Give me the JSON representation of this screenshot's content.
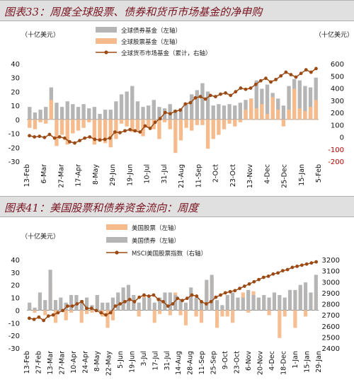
{
  "colors": {
    "bond": "#b5b5b5",
    "equity": "#f6bb8d",
    "line": "#9c4a14",
    "title_text": "#7a1522",
    "title_bg": "#e0e0e0"
  },
  "chart_data": [
    {
      "type": "bar",
      "title": "图表33：周度全球股票、债券和货币市场基金的净申购",
      "unit_left": "（十亿美元）",
      "unit_right": "（十亿美元）",
      "legend": [
        "全球债券基金（左轴）",
        "全球股票基金（左轴）",
        "全球货币市场基金（累计，右轴）"
      ],
      "legend_position": "top-center",
      "y_left": {
        "min": -30,
        "max": 40,
        "ticks": [
          "40",
          "30",
          "20",
          "10",
          "0",
          "-10",
          "-20",
          "-30"
        ]
      },
      "y_right": {
        "min": -200,
        "max": 600,
        "ticks": [
          "600",
          "500",
          "400",
          "300",
          "200",
          "100",
          "0",
          "-100",
          "-200"
        ]
      },
      "x_tick_labels": [
        "13-Feb",
        "6-Mar",
        "27-Mar",
        "17-Apr",
        "8-May",
        "29-Jun",
        "19-Jun",
        "10-Jul",
        "31-Jul",
        "21-Aug",
        "11-Sep",
        "2-Oct",
        "23-Oct",
        "13-Nov",
        "4-Dec",
        "25-Dec",
        "15-Jan",
        "5-Feb"
      ],
      "series": [
        {
          "name": "全球债券基金（左轴）",
          "kind": "bar",
          "values": [
            9,
            5,
            7,
            9,
            23,
            12,
            9,
            13,
            11,
            9,
            11,
            8,
            9,
            4,
            7,
            7,
            13,
            18,
            20,
            24,
            13,
            9,
            10,
            14,
            9,
            8,
            11,
            7,
            8,
            11,
            18,
            21,
            26,
            20,
            10,
            11,
            10,
            11,
            10,
            12,
            14,
            15,
            28,
            22,
            25,
            19,
            15,
            10,
            24,
            29,
            28,
            24,
            23,
            30
          ]
        },
        {
          "name": "全球股票基金（左轴）",
          "kind": "bar",
          "values": [
            -6,
            -7,
            -2,
            -3,
            14,
            -19,
            -11,
            -18,
            -10,
            -8,
            -6,
            -2,
            -18,
            -16,
            -17,
            -20,
            -14,
            -3,
            -5,
            -9,
            -8,
            -12,
            -6,
            -7,
            -14,
            -2,
            -7,
            -24,
            -15,
            -6,
            -8,
            -4,
            -4,
            -21,
            -14,
            -11,
            -7,
            -3,
            -5,
            -2,
            7,
            15,
            8,
            11,
            4,
            16,
            7,
            -5,
            7,
            22,
            8,
            6,
            9,
            14
          ]
        },
        {
          "name": "全球货币市场基金（累计，右轴）",
          "kind": "line",
          "values": [
            10,
            0,
            5,
            -5,
            20,
            -10,
            0,
            -10,
            -40,
            -50,
            -30,
            -10,
            0,
            -20,
            -25,
            -20,
            -10,
            40,
            35,
            50,
            60,
            50,
            40,
            90,
            70,
            120,
            150,
            200,
            190,
            210,
            220,
            270,
            280,
            320,
            330,
            310,
            340,
            330,
            350,
            360,
            340,
            370,
            400,
            390,
            400,
            430,
            460,
            480,
            450,
            470,
            500,
            530,
            510,
            490,
            520,
            550,
            530,
            560
          ]
        }
      ]
    },
    {
      "type": "bar",
      "title": "图表41：美国股票和债券资金流向：周度",
      "unit_left": "（十亿美元）",
      "legend": [
        "美国股票（左轴）",
        "美国债券（左轴）",
        "MSCI美国股票指数（右轴）"
      ],
      "legend_position": "top-center",
      "y_left": {
        "min": -30,
        "max": 40,
        "ticks": [
          "40",
          "30",
          "20",
          "10",
          "0",
          "-10",
          "-20",
          "-30"
        ]
      },
      "y_right": {
        "min": 2400,
        "max": 3200,
        "ticks": [
          "3200",
          "3100",
          "3000",
          "2900",
          "2800",
          "2700",
          "2600",
          "2500",
          "2400"
        ]
      },
      "x_tick_labels": [
        "13-Feb",
        "27-Feb",
        "13-Mar",
        "27-Mar",
        "10-Apr",
        "24-Apr",
        "8-May",
        "22-May",
        "5-Jun",
        "19-Jun",
        "3-Jul",
        "17-Jul",
        "31-Jul",
        "14-Aug",
        "28-Aug",
        "11-Sep",
        "25-Sep",
        "9-Oct",
        "23-Oct",
        "6-Nov",
        "20-Nov",
        "4-Dec",
        "18-Dec",
        "1-Jan",
        "15-Jan",
        "29-Jan"
      ],
      "series": [
        {
          "name": "美国股票（左轴）",
          "kind": "bar",
          "values": [
            3,
            -2,
            10,
            -4,
            24,
            -10,
            5,
            -8,
            -2,
            4,
            -10,
            -3,
            -2,
            12,
            -5,
            -14,
            -8,
            10,
            12,
            14,
            10,
            -5,
            12,
            8,
            -10,
            -3,
            5,
            -4,
            14,
            -4,
            -12,
            8,
            -5,
            -10,
            20,
            25,
            -14,
            -5,
            -5,
            -10,
            8,
            14,
            -2,
            15,
            10,
            8,
            -4,
            12,
            -22,
            -5,
            6,
            -14,
            18,
            -5,
            6,
            14
          ]
        },
        {
          "name": "美国债券（左轴）",
          "kind": "bar",
          "values": [
            6,
            2,
            14,
            8,
            32,
            8,
            10,
            6,
            12,
            12,
            8,
            10,
            4,
            12,
            6,
            6,
            10,
            14,
            18,
            20,
            12,
            6,
            10,
            10,
            6,
            10,
            14,
            14,
            12,
            8,
            6,
            18,
            10,
            6,
            24,
            28,
            8,
            4,
            12,
            14,
            10,
            10,
            16,
            12,
            10,
            12,
            10,
            14,
            12,
            10,
            16,
            16,
            20,
            22,
            14,
            28
          ]
        },
        {
          "name": "MSCI美国股票指数（右轴）",
          "kind": "line",
          "values": [
            2670,
            2660,
            2680,
            2650,
            2690,
            2700,
            2720,
            2740,
            2780,
            2780,
            2800,
            2820,
            2760,
            2760,
            2740,
            2720,
            2700,
            2720,
            2780,
            2800,
            2820,
            2840,
            2820,
            2860,
            2880,
            2870,
            2880,
            2840,
            2820,
            2780,
            2800,
            2850,
            2830,
            2850,
            2880,
            2870,
            2820,
            2800,
            2820,
            2860,
            2880,
            2900,
            2910,
            2920,
            2940,
            2960,
            2980,
            3000,
            3020,
            3040,
            3050,
            3070,
            3080,
            3100,
            3110,
            3130,
            3140,
            3150,
            3160,
            3170,
            3180
          ]
        }
      ]
    }
  ]
}
